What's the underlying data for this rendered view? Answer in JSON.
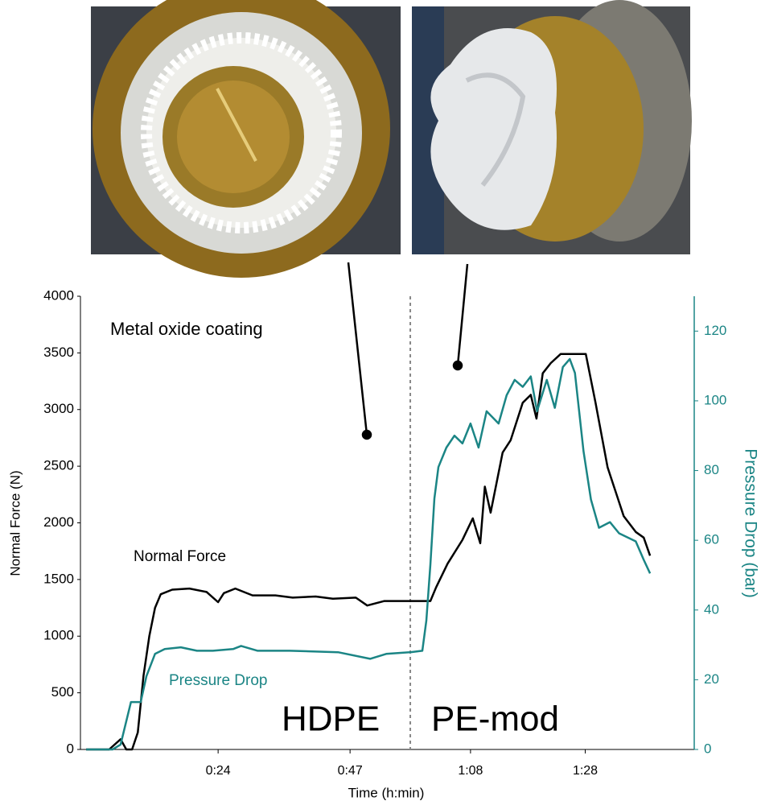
{
  "chart_data": {
    "type": "line",
    "annotations": [
      "Metal oxide coating",
      "Normal Force",
      "Pressure Drop",
      "HDPE",
      "PE-mod"
    ],
    "x_label": "Time (h:min)",
    "y_label": "Normal Force (N)",
    "y2_label": "Pressure Drop (bar)",
    "xlim": [
      0,
      107
    ],
    "xticks": [
      {
        "value": 24,
        "label": "0:24"
      },
      {
        "value": 47,
        "label": "0:47"
      },
      {
        "value": 68,
        "label": "1:08"
      },
      {
        "value": 88,
        "label": "1:28"
      }
    ],
    "ylim": [
      0,
      4000
    ],
    "yticks": [
      0,
      500,
      1000,
      1500,
      2000,
      2500,
      3000,
      3500,
      4000
    ],
    "y2lim": [
      0,
      130
    ],
    "y2ticks": [
      0,
      20,
      40,
      60,
      80,
      100,
      120
    ],
    "vlines": [
      57.5
    ],
    "series": [
      {
        "name": "Normal Force",
        "color": "#000000",
        "x": [
          1,
          5,
          7,
          8,
          9,
          10,
          11,
          12,
          13,
          14,
          16,
          19,
          22,
          24,
          25,
          27,
          30,
          34,
          37,
          41,
          44,
          48,
          50,
          53,
          57.5,
          61,
          62,
          64,
          66.6,
          68.4,
          69.7,
          70.5,
          71.5,
          73.6,
          75,
          77.1,
          78.5,
          79.5,
          80.6,
          82,
          83.7,
          88.1,
          89.8,
          91.9,
          94.7,
          96.8,
          98.2,
          99.3
        ],
        "values": [
          0,
          0,
          90,
          0,
          0,
          150,
          650,
          1000,
          1250,
          1370,
          1410,
          1420,
          1390,
          1300,
          1380,
          1420,
          1360,
          1360,
          1340,
          1350,
          1330,
          1340,
          1270,
          1310,
          1310,
          1310,
          1430,
          1640,
          1850,
          2040,
          1820,
          2320,
          2090,
          2620,
          2730,
          3060,
          3130,
          2920,
          3320,
          3410,
          3490,
          3490,
          3060,
          2490,
          2060,
          1920,
          1870,
          1710
        ]
      },
      {
        "name": "Pressure Drop",
        "color": "#1b8585",
        "axis": "y2",
        "x": [
          1,
          5.6,
          7,
          8.8,
          10.5,
          11.5,
          13,
          14.7,
          17.5,
          20.3,
          23.1,
          26.6,
          28,
          30.9,
          36.5,
          44.9,
          50.5,
          53.3,
          57.5,
          59.6,
          60.3,
          61,
          61.7,
          62.4,
          63.8,
          65.2,
          66.6,
          68,
          69.4,
          70.8,
          72.9,
          74.3,
          75.7,
          77.1,
          78.5,
          79.6,
          81.3,
          82.7,
          84.1,
          85.3,
          86.2,
          87.7,
          89,
          90.4,
          92.3,
          93.9,
          96.8,
          98.2,
          99.3
        ],
        "values": [
          0,
          0,
          1.4,
          13.6,
          13.6,
          21,
          27.4,
          28.8,
          29.3,
          28.3,
          28.3,
          28.8,
          29.7,
          28.3,
          28.3,
          27.9,
          26,
          27.4,
          27.9,
          28.3,
          37,
          53,
          72,
          81,
          86.6,
          90,
          87.8,
          93.5,
          86.6,
          97,
          93.5,
          101.6,
          106,
          104,
          107,
          97,
          106,
          98,
          109.7,
          112,
          108,
          85.5,
          71.7,
          63.6,
          65.2,
          62,
          59.7,
          54.4,
          50.5
        ]
      }
    ]
  }
}
